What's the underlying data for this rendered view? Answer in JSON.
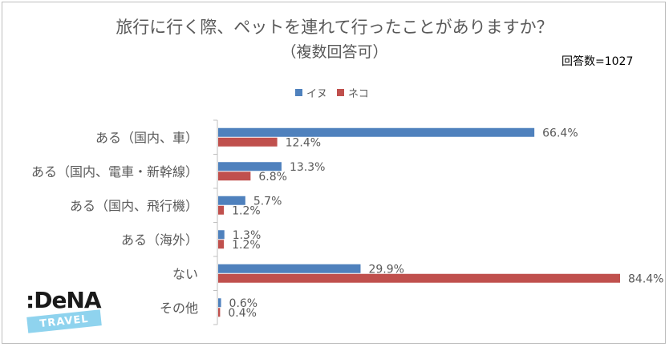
{
  "header": {
    "title_line1": "旅行に行く際、ペットを連れて行ったことがありますか？",
    "title_line2": "（複数回答可）",
    "respondents": "回答数=1027"
  },
  "logo": {
    "word": ":DeNA",
    "sub": "TRAVEL"
  },
  "colors": {
    "dog": "#4f81bd",
    "cat": "#c0504d",
    "axis": "#bfbfbf",
    "text": "#595959"
  },
  "chart_data": {
    "type": "bar",
    "orientation": "horizontal",
    "title": "旅行に行く際、ペットを連れて行ったことがありますか？（複数回答可）",
    "categories": [
      "ある（国内、車）",
      "ある（国内、電車・新幹線）",
      "ある（国内、飛行機）",
      "ある（海外）",
      "ない",
      "その他"
    ],
    "series": [
      {
        "name": "イヌ",
        "values": [
          66.4,
          13.3,
          5.7,
          1.3,
          29.9,
          0.6
        ],
        "labels": [
          "66.4%",
          "13.3%",
          "5.7%",
          "1.3%",
          "29.9%",
          "0.6%"
        ]
      },
      {
        "name": "ネコ",
        "values": [
          12.4,
          6.8,
          1.2,
          1.2,
          84.4,
          0.4
        ],
        "labels": [
          "12.4%",
          "6.8%",
          "1.2%",
          "1.2%",
          "84.4%",
          "0.4%"
        ]
      }
    ],
    "unit": "%",
    "xlim": [
      0,
      100
    ],
    "legend": "top-center",
    "grid": false
  }
}
